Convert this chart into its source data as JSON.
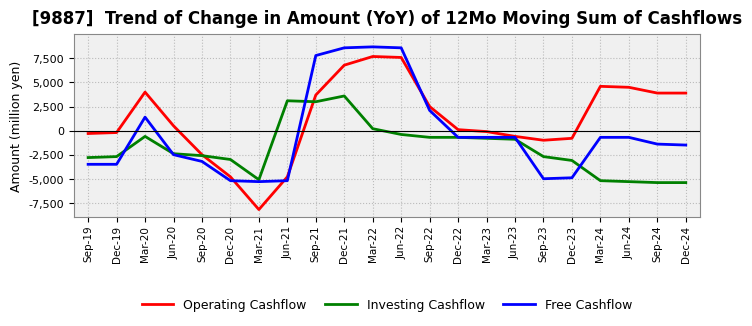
{
  "title": "[9887]  Trend of Change in Amount (YoY) of 12Mo Moving Sum of Cashflows",
  "ylabel": "Amount (million yen)",
  "x_labels": [
    "Sep-19",
    "Dec-19",
    "Mar-20",
    "Jun-20",
    "Sep-20",
    "Dec-20",
    "Mar-21",
    "Jun-21",
    "Sep-21",
    "Dec-21",
    "Mar-22",
    "Jun-22",
    "Sep-22",
    "Dec-22",
    "Mar-23",
    "Jun-23",
    "Sep-23",
    "Dec-23",
    "Mar-24",
    "Jun-24",
    "Sep-24",
    "Dec-24"
  ],
  "operating": [
    -300,
    -200,
    4000,
    500,
    -2500,
    -4800,
    -8200,
    -4800,
    3700,
    6800,
    7700,
    7600,
    2500,
    100,
    -100,
    -600,
    -1000,
    -800,
    4600,
    4500,
    3900,
    3900
  ],
  "investing": [
    -2800,
    -2700,
    -600,
    -2400,
    -2600,
    -3000,
    -5100,
    3100,
    3000,
    3600,
    200,
    -400,
    -700,
    -700,
    -800,
    -900,
    -2700,
    -3100,
    -5200,
    -5300,
    -5400,
    -5400
  ],
  "free": [
    -3500,
    -3500,
    1400,
    -2500,
    -3200,
    -5200,
    -5300,
    -5200,
    7800,
    8600,
    8700,
    8600,
    2100,
    -700,
    -700,
    -700,
    -5000,
    -4900,
    -700,
    -700,
    -1400,
    -1500
  ],
  "operating_color": "#ff0000",
  "investing_color": "#008000",
  "free_color": "#0000ff",
  "ylim": [
    -9000,
    10000
  ],
  "yticks": [
    -7500,
    -5000,
    -2500,
    0,
    2500,
    5000,
    7500
  ],
  "bg_color": "#ffffff",
  "plot_bg_color": "#f0f0f0",
  "grid_color": "#bbbbbb",
  "title_fontsize": 12,
  "axis_fontsize": 9,
  "legend_fontsize": 9,
  "linewidth": 2.0
}
